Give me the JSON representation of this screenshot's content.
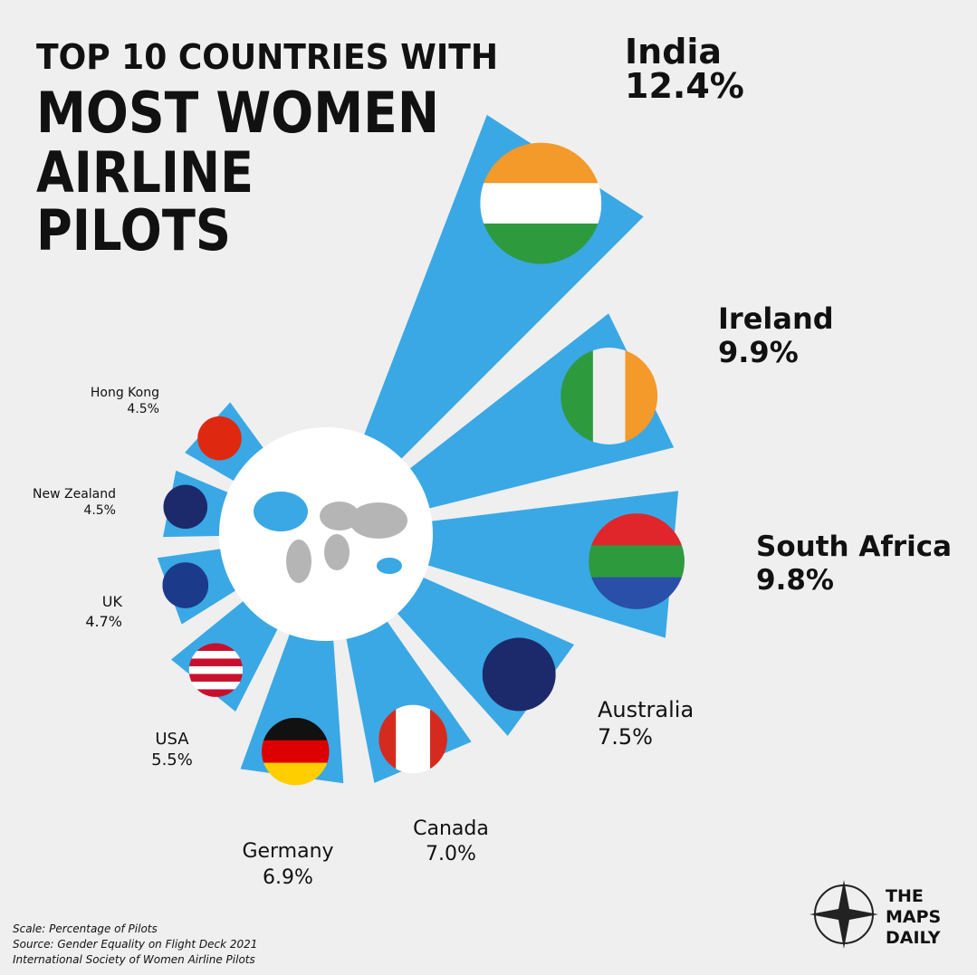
{
  "chart_data": {
    "type": "radial_bar",
    "title": [
      "TOP 10 COUNTRIES WITH",
      "MOST WOMEN",
      "AIRLINE",
      "PILOTS"
    ],
    "categories": [
      "India",
      "Ireland",
      "South Africa",
      "Australia",
      "Canada",
      "Germany",
      "USA",
      "UK",
      "New Zealand",
      "Hong Kong"
    ],
    "values": [
      12.4,
      9.9,
      9.8,
      7.5,
      7.0,
      6.9,
      5.5,
      4.7,
      4.5,
      4.5
    ],
    "value_labels": [
      "12.4%",
      "9.9%",
      "9.8%",
      "7.5%",
      "7.0%",
      "6.9%",
      "5.5%",
      "4.7%",
      "4.5%",
      "4.5%"
    ],
    "color": "#3aa8e4",
    "notes": [
      "Scale: Percentage of Pilots",
      "Source: Gender Equality on Flight Deck 2021",
      "International Society of Women Airline Pilots"
    ],
    "brand": [
      "THE",
      "MAPS",
      "DAILY"
    ]
  }
}
